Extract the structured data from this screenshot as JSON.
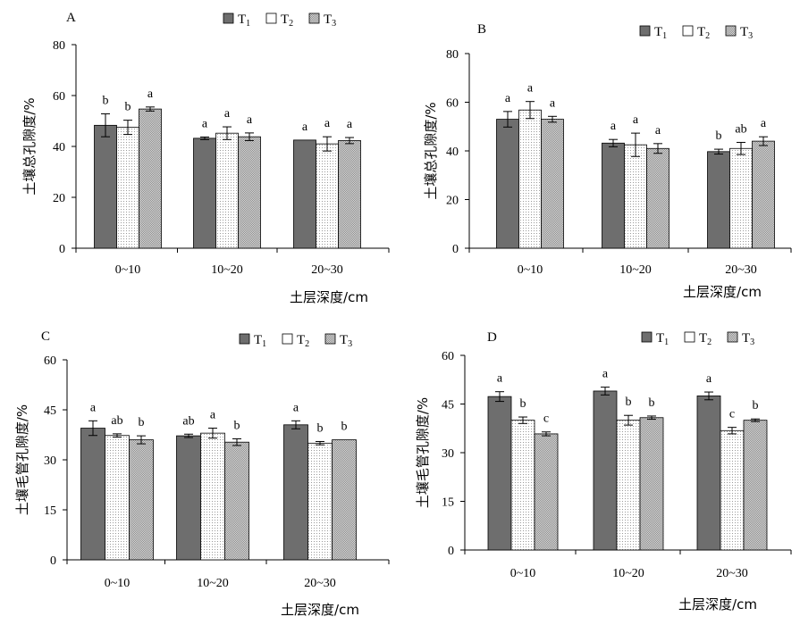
{
  "chart_data": [
    {
      "type": "bar",
      "panel_label": "A",
      "categories": [
        "0~10",
        "10~20",
        "20~30"
      ],
      "legend": [
        "T1",
        "T2",
        "T3"
      ],
      "series": [
        {
          "name": "T1",
          "values": [
            48.3,
            43.2,
            42.5
          ],
          "errors": [
            4.5,
            0.5,
            0.0
          ],
          "letters": [
            "b",
            "a",
            "a"
          ],
          "pattern": "dark"
        },
        {
          "name": "T2",
          "values": [
            47.5,
            45.2,
            41.0
          ],
          "errors": [
            2.8,
            2.5,
            2.8
          ],
          "letters": [
            "b",
            "a",
            "a"
          ],
          "pattern": "dots"
        },
        {
          "name": "T3",
          "values": [
            54.7,
            43.8,
            42.3
          ],
          "errors": [
            0.8,
            1.5,
            1.2
          ],
          "letters": [
            "a",
            "a",
            "a"
          ],
          "pattern": "checker"
        }
      ],
      "ylabel": "土壤总孔隙度/%",
      "xlabel": "土层深度/cm",
      "ylim": [
        0,
        80
      ],
      "yticks": [
        0,
        20,
        40,
        60,
        80
      ]
    },
    {
      "type": "bar",
      "panel_label": "B",
      "categories": [
        "0~10",
        "10~20",
        "20~30"
      ],
      "legend": [
        "T1",
        "T2",
        "T3"
      ],
      "series": [
        {
          "name": "T1",
          "values": [
            53.0,
            43.2,
            39.7
          ],
          "errors": [
            3.2,
            1.5,
            1.0
          ],
          "letters": [
            "a",
            "a",
            "b"
          ],
          "pattern": "dark"
        },
        {
          "name": "T2",
          "values": [
            56.8,
            42.5,
            41.0
          ],
          "errors": [
            3.5,
            4.8,
            2.5
          ],
          "letters": [
            "a",
            "a",
            "ab"
          ],
          "pattern": "dots"
        },
        {
          "name": "T3",
          "values": [
            53.0,
            41.0,
            44.0
          ],
          "errors": [
            1.2,
            2.0,
            1.8
          ],
          "letters": [
            "a",
            "a",
            "a"
          ],
          "pattern": "checker"
        }
      ],
      "ylabel": "土壤总孔隙度/%",
      "xlabel": "土层深度/cm",
      "ylim": [
        0,
        80
      ],
      "yticks": [
        0,
        20,
        40,
        60,
        80
      ]
    },
    {
      "type": "bar",
      "panel_label": "C",
      "categories": [
        "0~10",
        "10~20",
        "20~30"
      ],
      "legend": [
        "T1",
        "T2",
        "T3"
      ],
      "series": [
        {
          "name": "T1",
          "values": [
            39.5,
            37.2,
            40.5
          ],
          "errors": [
            2.2,
            0.5,
            1.2
          ],
          "letters": [
            "a",
            "ab",
            "a"
          ],
          "pattern": "dark"
        },
        {
          "name": "T2",
          "values": [
            37.3,
            38.0,
            35.0
          ],
          "errors": [
            0.5,
            1.5,
            0.5
          ],
          "letters": [
            "ab",
            "a",
            "b"
          ],
          "pattern": "dots"
        },
        {
          "name": "T3",
          "values": [
            36.0,
            35.3,
            36.0
          ],
          "errors": [
            1.2,
            1.0,
            0.0
          ],
          "letters": [
            "b",
            "b",
            "b"
          ],
          "pattern": "checker"
        }
      ],
      "ylabel": "土壤毛管孔隙度/%",
      "xlabel": "土层深度/cm",
      "ylim": [
        0,
        60
      ],
      "yticks": [
        0,
        15,
        30,
        45,
        60
      ]
    },
    {
      "type": "bar",
      "panel_label": "D",
      "categories": [
        "0~10",
        "10~20",
        "20~30"
      ],
      "legend": [
        "T1",
        "T2",
        "T3"
      ],
      "series": [
        {
          "name": "T1",
          "values": [
            47.3,
            49.0,
            47.5
          ],
          "errors": [
            1.5,
            1.2,
            1.2
          ],
          "letters": [
            "a",
            "a",
            "a"
          ],
          "pattern": "dark"
        },
        {
          "name": "T2",
          "values": [
            40.0,
            40.0,
            36.8
          ],
          "errors": [
            1.0,
            1.5,
            1.0
          ],
          "letters": [
            "b",
            "b",
            "c"
          ],
          "pattern": "dots"
        },
        {
          "name": "T3",
          "values": [
            35.8,
            40.8,
            40.0
          ],
          "errors": [
            0.6,
            0.5,
            0.4
          ],
          "letters": [
            "c",
            "b",
            "b"
          ],
          "pattern": "checker"
        }
      ],
      "ylabel": "土壤毛管孔隙度/%",
      "xlabel": "土层深度/cm",
      "ylim": [
        0,
        60
      ],
      "yticks": [
        0,
        15,
        30,
        45,
        60
      ]
    }
  ],
  "colors": {
    "dark_bar": "#6e6e6e",
    "dots_bar": "#ffffff",
    "checker_bar": "#bdbdbd",
    "axis": "#000000"
  }
}
